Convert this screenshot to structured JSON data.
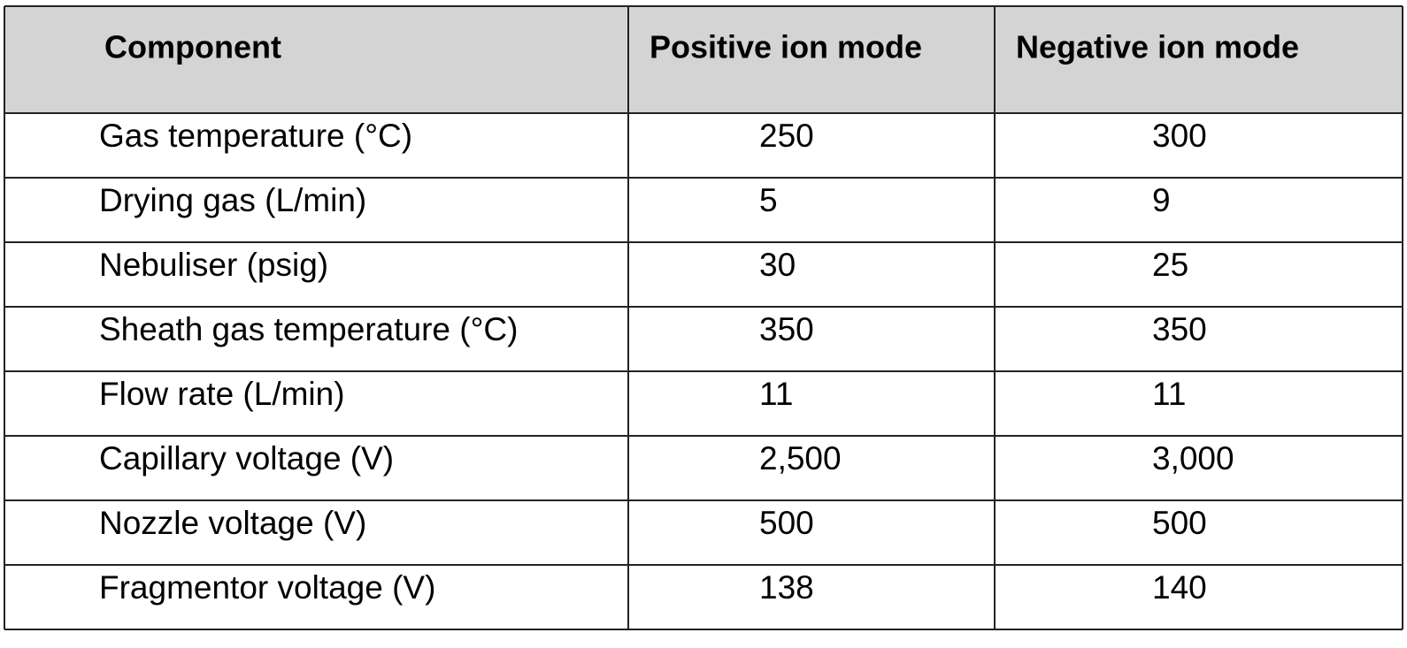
{
  "table": {
    "header": [
      "Component",
      "Positive ion mode",
      "Negative ion mode"
    ],
    "rows": [
      [
        "Gas temperature (°C)",
        "250",
        "300"
      ],
      [
        "Drying gas (L/min)",
        "5",
        "9"
      ],
      [
        "Nebuliser (psig)",
        "30",
        "25"
      ],
      [
        "Sheath gas temperature (°C)",
        "350",
        "350"
      ],
      [
        "Flow rate (L/min)",
        "11",
        "11"
      ],
      [
        "Capillary voltage (V)",
        "2,500",
        "3,000"
      ],
      [
        "Nozzle voltage (V)",
        "500",
        "500"
      ],
      [
        "Fragmentor voltage (V)",
        "138",
        "140"
      ]
    ]
  }
}
